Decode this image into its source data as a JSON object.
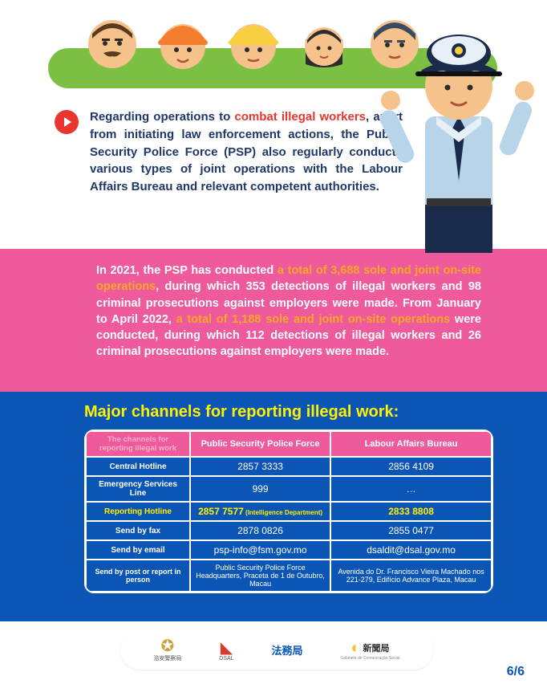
{
  "colors": {
    "green": "#7bc043",
    "pink": "#ef5a9d",
    "blue": "#0b56b5",
    "navy": "#20376a",
    "red": "#e8352d",
    "orange": "#f7a823",
    "yellow": "#fff200"
  },
  "faces": [
    {
      "label": "man-mustache",
      "skin": "#f6c28b",
      "hair": "#5b3a1e"
    },
    {
      "label": "worker-orange-helmet",
      "skin": "#f6c28b",
      "helmet": "#f47d30"
    },
    {
      "label": "worker-yellow-helmet",
      "skin": "#f6c28b",
      "helmet": "#f8cf3f"
    },
    {
      "label": "woman",
      "skin": "#f6c28b",
      "hair": "#2c2c2c"
    },
    {
      "label": "man-blue",
      "skin": "#f6c28b",
      "hair": "#3a4a63"
    }
  ],
  "officer": {
    "skin": "#f6c28b",
    "hat": "#1a2a4a",
    "shirt": "#b8d4e8",
    "tie": "#1a2a4a",
    "pants": "#1a2a4a"
  },
  "para1": {
    "pre": "Regarding operations to ",
    "hl": "combat illegal workers",
    "post": ", apart from initiating law enforcement actions, the Public Security Police Force (PSP) also regularly conducts various types of joint operations with the Labour Affairs Bureau and relevant competent authorities."
  },
  "para2": {
    "t1": "In 2021, the PSP has conducted ",
    "h1": "a total of 3,688 sole and joint on-site operations",
    "t2": ", during which 353 detections of illegal workers and 98 criminal prosecutions against employers were made. From January to April 2022, ",
    "h2": "a total of 1,188 sole and joint on-site operations",
    "t3": " were conducted, during which 112 detections of illegal workers and 26 criminal prosecutions against employers were made."
  },
  "table": {
    "title": "Major channels for reporting illegal work:",
    "header": {
      "c0": "The channels for reporting illegal work",
      "c1": "Public Security Police Force",
      "c2": "Labour Affairs Bureau"
    },
    "rows": [
      {
        "label": "Central Hotline",
        "c1": "2857 3333",
        "c2": "2856 4109",
        "labelYellow": false,
        "c1Yellow": false,
        "c2Yellow": false
      },
      {
        "label": "Emergency Services Line",
        "c1": "999",
        "c2": "…",
        "labelYellow": false,
        "c1Yellow": false,
        "c2Yellow": false
      },
      {
        "label": "Reporting Hotline",
        "c1": "2857 7577",
        "c1note": "(Intelligence Department)",
        "c2": "2833 8808",
        "labelYellow": true,
        "c1Yellow": true,
        "c2Yellow": true
      },
      {
        "label": "Send by fax",
        "c1": "2878 0826",
        "c2": "2855 0477",
        "labelYellow": false,
        "c1Yellow": false,
        "c2Yellow": false
      },
      {
        "label": "Send by email",
        "c1": "psp-info@fsm.gov.mo",
        "c2": "dsaldit@dsal.gov.mo",
        "labelYellow": false,
        "c1Yellow": false,
        "c2Yellow": false
      },
      {
        "label": "Send by post or report in person",
        "c1": "Public Security Police Force Headquarters, Praceta de 1 de Outubro, Macau",
        "c2": "Avenida do Dr. Francisco Vieira Machado nos 221-279, Edifício Advance Plaza, Macau",
        "labelYellow": false,
        "c1Yellow": false,
        "c2Yellow": false,
        "small": true
      }
    ]
  },
  "footer": {
    "logos": [
      {
        "name": "治安警察局",
        "glyph": "✪",
        "color": "#c9a23c"
      },
      {
        "name": "DSAL",
        "glyph": "◣",
        "color": "#d43c2e"
      },
      {
        "name": "法務局",
        "glyph": "法務局",
        "color": "#0b56b5"
      },
      {
        "name": "新聞局",
        "sub": "Gabinete de Comunicação Social",
        "glyph": "◐",
        "color": "#f2c23a"
      }
    ]
  },
  "page_number": "6/6"
}
